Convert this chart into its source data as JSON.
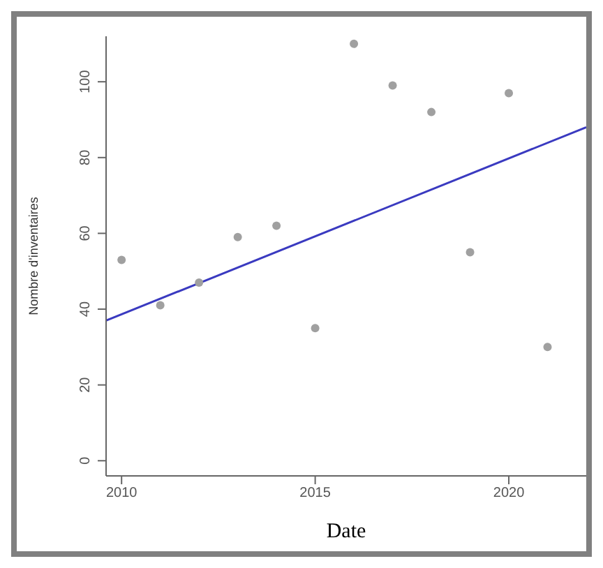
{
  "chart_data": {
    "type": "scatter",
    "xlabel": "Date",
    "ylabel": "Nombre d'inventaires",
    "xlim": [
      2009.6,
      2022
    ],
    "xticks": [
      2010,
      2015,
      2020
    ],
    "ylim": [
      -4,
      112
    ],
    "yticks": [
      0,
      20,
      40,
      60,
      80,
      100
    ],
    "grid": false,
    "marker": "circle",
    "series": [
      {
        "color": "#a0a0a0",
        "x": [
          2010,
          2011,
          2012,
          2013,
          2014,
          2015,
          2016,
          2017,
          2018,
          2019,
          2020,
          2021
        ],
        "values": [
          53,
          41,
          47,
          59,
          62,
          35,
          110,
          99,
          92,
          55,
          97,
          30
        ]
      },
      {
        "type": "line",
        "color": "#3a3ac0",
        "x": [
          2009.6,
          2022
        ],
        "values": [
          37,
          88
        ],
        "marker": "none",
        "line_style": "solid"
      }
    ]
  }
}
